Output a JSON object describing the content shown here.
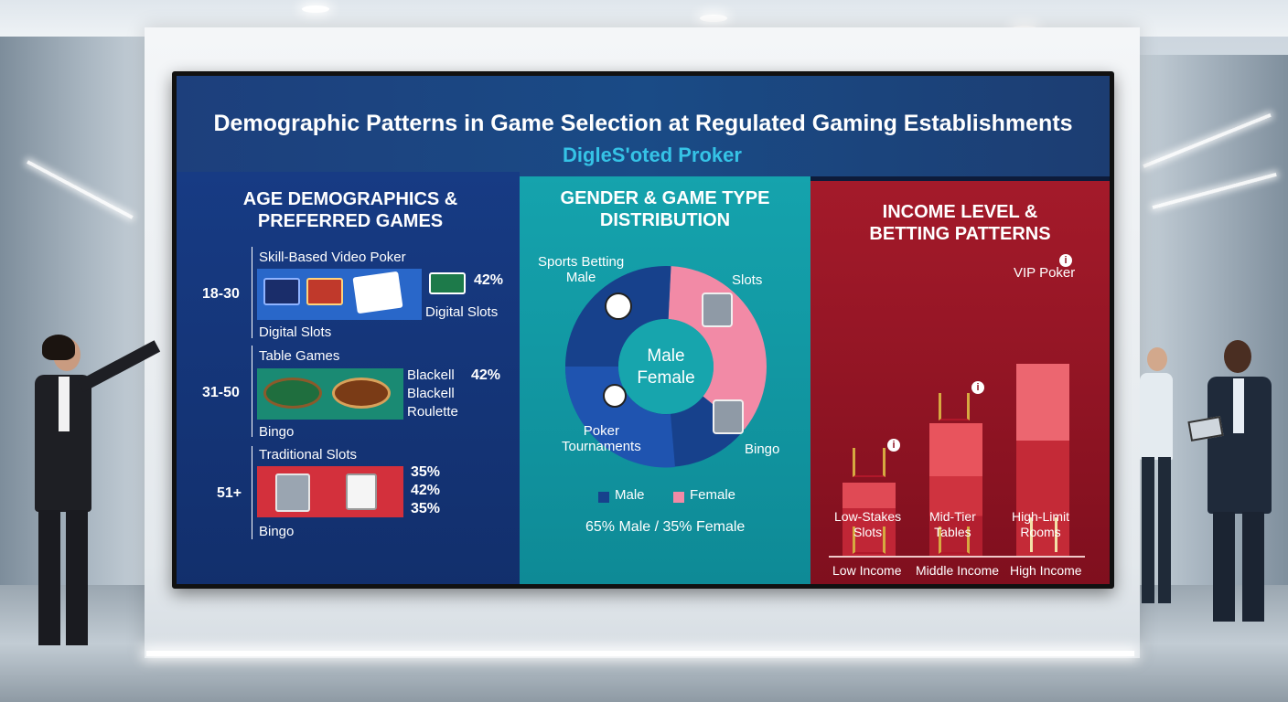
{
  "header": {
    "title": "Demographic Patterns in Game Selection at Regulated Gaming Establishments",
    "subtitle": "DigleS'oted Proker"
  },
  "age_panel": {
    "title": "AGE DEMOGRAPHICS &\nPREFERRED GAMES",
    "groups": [
      {
        "age": "18-30",
        "top_label": "Skill-Based Video Poker",
        "bottom_label": "Digital Slots",
        "pct": "42%",
        "side_label": "Digital Slots"
      },
      {
        "age": "31-50",
        "top_label": "Table Games",
        "bottom_label": "Bingo",
        "pct": "42%",
        "side_lines": [
          "Blackell",
          "Blackell",
          "Roulette"
        ]
      },
      {
        "age": "51+",
        "top_label": "Traditional Slots",
        "bottom_label": "Bingo",
        "pcts": [
          "35%",
          "42%",
          "35%"
        ]
      }
    ]
  },
  "gender_panel": {
    "title": "GENDER & GAME TYPE\nDISTRIBUTION",
    "center_lines": [
      "Male",
      "Female"
    ],
    "slice_labels": {
      "sports": "Sports Betting\nMale",
      "slots": "Slots",
      "poker": "Poker\nTournaments",
      "bingo": "Bingo"
    },
    "legend": [
      {
        "name": "Male",
        "color": "#17418c"
      },
      {
        "name": "Female",
        "color": "#f28aa6"
      }
    ],
    "summary": "65% Male / 35% Female"
  },
  "income_panel": {
    "title": "INCOME LEVEL &\nBETTING PATTERNS",
    "top_label": "VIP Poker",
    "columns": [
      {
        "income": "Low Income",
        "game": "Low-Stakes\nSlots"
      },
      {
        "income": "Middle Income",
        "game": "Mid-Tier\nTables"
      },
      {
        "income": "High Income",
        "game": "High-Limit\nRooms"
      }
    ]
  },
  "chart_data": [
    {
      "type": "pie",
      "title": "GENDER & GAME TYPE DISTRIBUTION",
      "slices": [
        {
          "label": "Male",
          "value": 65,
          "color": "#17418c"
        },
        {
          "label": "Female",
          "value": 35,
          "color": "#f28aa6"
        }
      ]
    }
  ]
}
